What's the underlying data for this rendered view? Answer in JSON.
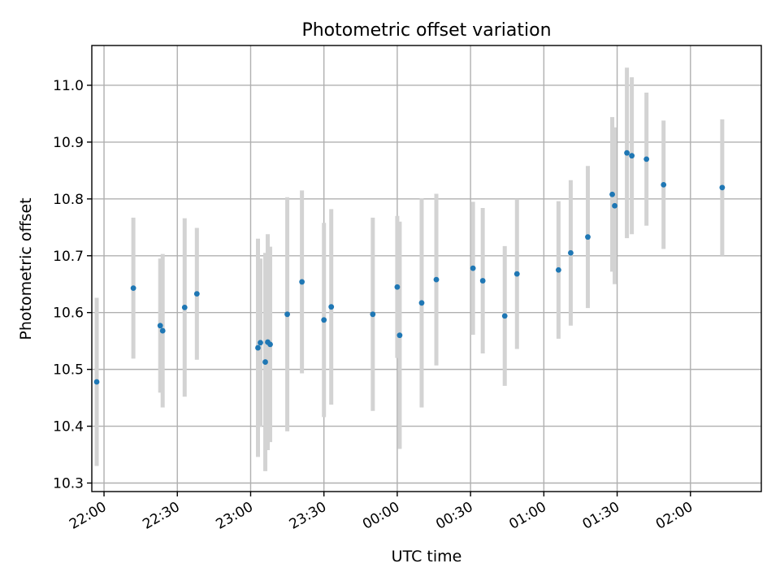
{
  "chart_data": {
    "type": "scatter",
    "title": "Photometric offset variation",
    "xlabel": "UTC time",
    "ylabel": "Photometric offset",
    "x_axis_kind": "time",
    "x_range": [
      "21:55",
      "02:29"
    ],
    "ylim": [
      10.285,
      11.07
    ],
    "y_ticks": [
      10.3,
      10.4,
      10.5,
      10.6,
      10.7,
      10.8,
      10.9,
      11.0
    ],
    "y_tick_labels": [
      "10.3",
      "10.4",
      "10.5",
      "10.6",
      "10.7",
      "10.8",
      "10.9",
      "11.0"
    ],
    "x_ticks": [
      "22:00",
      "22:30",
      "23:00",
      "23:30",
      "00:00",
      "00:30",
      "01:00",
      "01:30",
      "02:00"
    ],
    "grid": true,
    "point_color": "#1f77b4",
    "errorbar_color": "#d3d3d3",
    "series": [
      {
        "points": [
          {
            "t": "21:57",
            "y": 10.478,
            "err": 0.148
          },
          {
            "t": "22:12",
            "y": 10.643,
            "err": 0.124
          },
          {
            "t": "22:23",
            "y": 10.577,
            "err": 0.118
          },
          {
            "t": "22:24",
            "y": 10.568,
            "err": 0.135
          },
          {
            "t": "22:33",
            "y": 10.609,
            "err": 0.157
          },
          {
            "t": "22:38",
            "y": 10.633,
            "err": 0.116
          },
          {
            "t": "23:03",
            "y": 10.538,
            "err": 0.192
          },
          {
            "t": "23:04",
            "y": 10.547,
            "err": 0.148
          },
          {
            "t": "23:06",
            "y": 10.513,
            "err": 0.192
          },
          {
            "t": "23:07",
            "y": 10.548,
            "err": 0.19
          },
          {
            "t": "23:08",
            "y": 10.544,
            "err": 0.172
          },
          {
            "t": "23:15",
            "y": 10.597,
            "err": 0.206
          },
          {
            "t": "23:21",
            "y": 10.654,
            "err": 0.161
          },
          {
            "t": "23:30",
            "y": 10.587,
            "err": 0.171
          },
          {
            "t": "23:33",
            "y": 10.61,
            "err": 0.172
          },
          {
            "t": "23:50",
            "y": 10.597,
            "err": 0.17
          },
          {
            "t": "00:00",
            "y": 10.645,
            "err": 0.125
          },
          {
            "t": "00:01",
            "y": 10.56,
            "err": 0.2
          },
          {
            "t": "00:10",
            "y": 10.617,
            "err": 0.184
          },
          {
            "t": "00:16",
            "y": 10.658,
            "err": 0.151
          },
          {
            "t": "00:31",
            "y": 10.678,
            "err": 0.117
          },
          {
            "t": "00:35",
            "y": 10.656,
            "err": 0.128
          },
          {
            "t": "00:44",
            "y": 10.594,
            "err": 0.123
          },
          {
            "t": "00:49",
            "y": 10.668,
            "err": 0.132
          },
          {
            "t": "01:06",
            "y": 10.675,
            "err": 0.121
          },
          {
            "t": "01:11",
            "y": 10.705,
            "err": 0.128
          },
          {
            "t": "01:18",
            "y": 10.733,
            "err": 0.125
          },
          {
            "t": "01:28",
            "y": 10.808,
            "err": 0.136
          },
          {
            "t": "01:29",
            "y": 10.788,
            "err": 0.138
          },
          {
            "t": "01:34",
            "y": 10.881,
            "err": 0.15
          },
          {
            "t": "01:36",
            "y": 10.876,
            "err": 0.138
          },
          {
            "t": "01:42",
            "y": 10.87,
            "err": 0.117
          },
          {
            "t": "01:49",
            "y": 10.825,
            "err": 0.113
          },
          {
            "t": "02:13",
            "y": 10.82,
            "err": 0.12
          }
        ]
      }
    ]
  }
}
